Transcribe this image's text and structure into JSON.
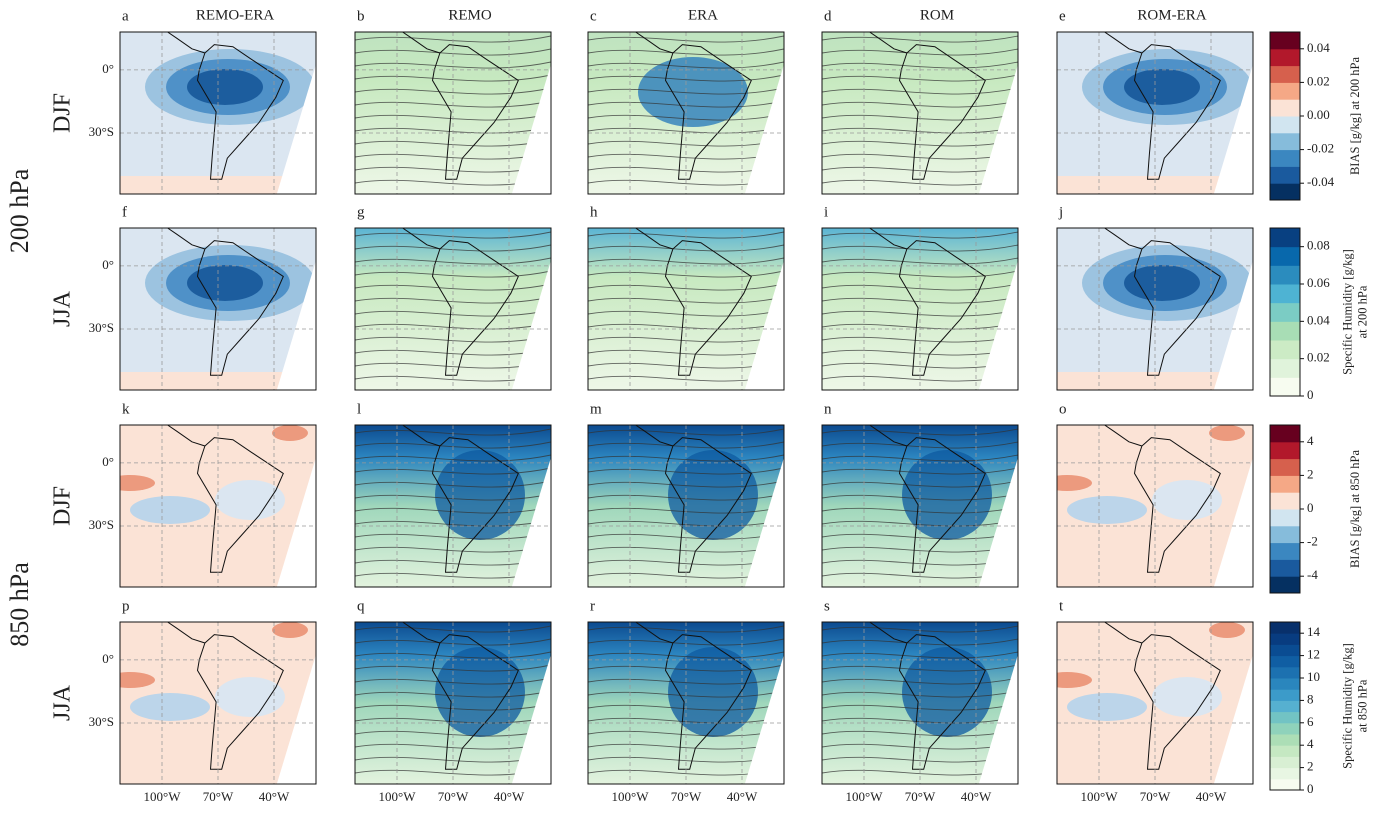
{
  "columns": [
    "REMO-ERA",
    "REMO",
    "ERA",
    "ROM",
    "ROM-ERA"
  ],
  "map": {
    "lon_lim": [
      -122.5,
      -17.5
    ],
    "lat_lim": [
      -59,
      18
    ],
    "lat_ticks": [
      {
        "value": 0,
        "label": "0°"
      },
      {
        "value": -30,
        "label": "30°S"
      }
    ],
    "lon_ticks": [
      {
        "value": -100,
        "label": "100°W"
      },
      {
        "value": -70,
        "label": "70°W"
      },
      {
        "value": -40,
        "label": "40°W"
      }
    ]
  },
  "levels": [
    {
      "label": "200 hPa",
      "rows": [
        {
          "season": "DJF",
          "panels": [
            "a",
            "b",
            "c",
            "d",
            "e"
          ],
          "colorbar": {
            "label": [
              "BIAS [g/kg] at 200 hPa"
            ],
            "lim": [
              -0.05,
              0.05
            ],
            "ticks": [
              -0.04,
              -0.02,
              {
                "value": 0,
                "label": "0.00"
              },
              0.02,
              0.04
            ],
            "colors": [
              "#053061",
              "#1a5a9e",
              "#3b87c0",
              "#86bcdb",
              "#d1e5f0",
              "#fbe3d6",
              "#f5a886",
              "#d6604d",
              "#b2182b",
              "#67001f"
            ]
          }
        },
        {
          "season": "JJA",
          "panels": [
            "f",
            "g",
            "h",
            "i",
            "j"
          ],
          "colorbar": {
            "label": [
              "Specific Humidity [g/kg]",
              "at 200 hPa"
            ],
            "lim": [
              0,
              0.09
            ],
            "ticks": [
              0,
              0.02,
              0.04,
              0.06,
              0.08
            ],
            "colors": [
              "#f7fcf0",
              "#e0f3db",
              "#ccebc5",
              "#a8ddb5",
              "#7bccc4",
              "#4eb3d3",
              "#2b8cbe",
              "#0868ac",
              "#084081"
            ]
          }
        }
      ]
    },
    {
      "label": "850 hPa",
      "rows": [
        {
          "season": "DJF",
          "panels": [
            "k",
            "l",
            "m",
            "n",
            "o"
          ],
          "colorbar": {
            "label": [
              "BIAS [g/kg] at 850 hPa"
            ],
            "lim": [
              -5,
              5
            ],
            "ticks": [
              -4,
              -2,
              0,
              2,
              4
            ],
            "colors": [
              "#053061",
              "#1a5a9e",
              "#3b87c0",
              "#86bcdb",
              "#d1e5f0",
              "#fbe3d6",
              "#f5a886",
              "#d6604d",
              "#b2182b",
              "#67001f"
            ]
          }
        },
        {
          "season": "JJA",
          "panels": [
            "p",
            "q",
            "r",
            "s",
            "t"
          ],
          "colorbar": {
            "label": [
              "Specific Humidity [g/kg]",
              "at 850 hPa"
            ],
            "lim": [
              0,
              15
            ],
            "ticks": [
              0,
              2,
              4,
              6,
              8,
              10,
              12,
              14
            ],
            "colors": [
              "#f7fcf0",
              "#e8f6e3",
              "#d8efd3",
              "#c5e8c2",
              "#acdeb6",
              "#8fd2bb",
              "#72c3c4",
              "#56b0d0",
              "#3c9bc9",
              "#2a86bd",
              "#1c71b0",
              "#105ea3",
              "#0a4c92",
              "#083c80",
              "#08306b"
            ]
          }
        }
      ]
    }
  ]
}
